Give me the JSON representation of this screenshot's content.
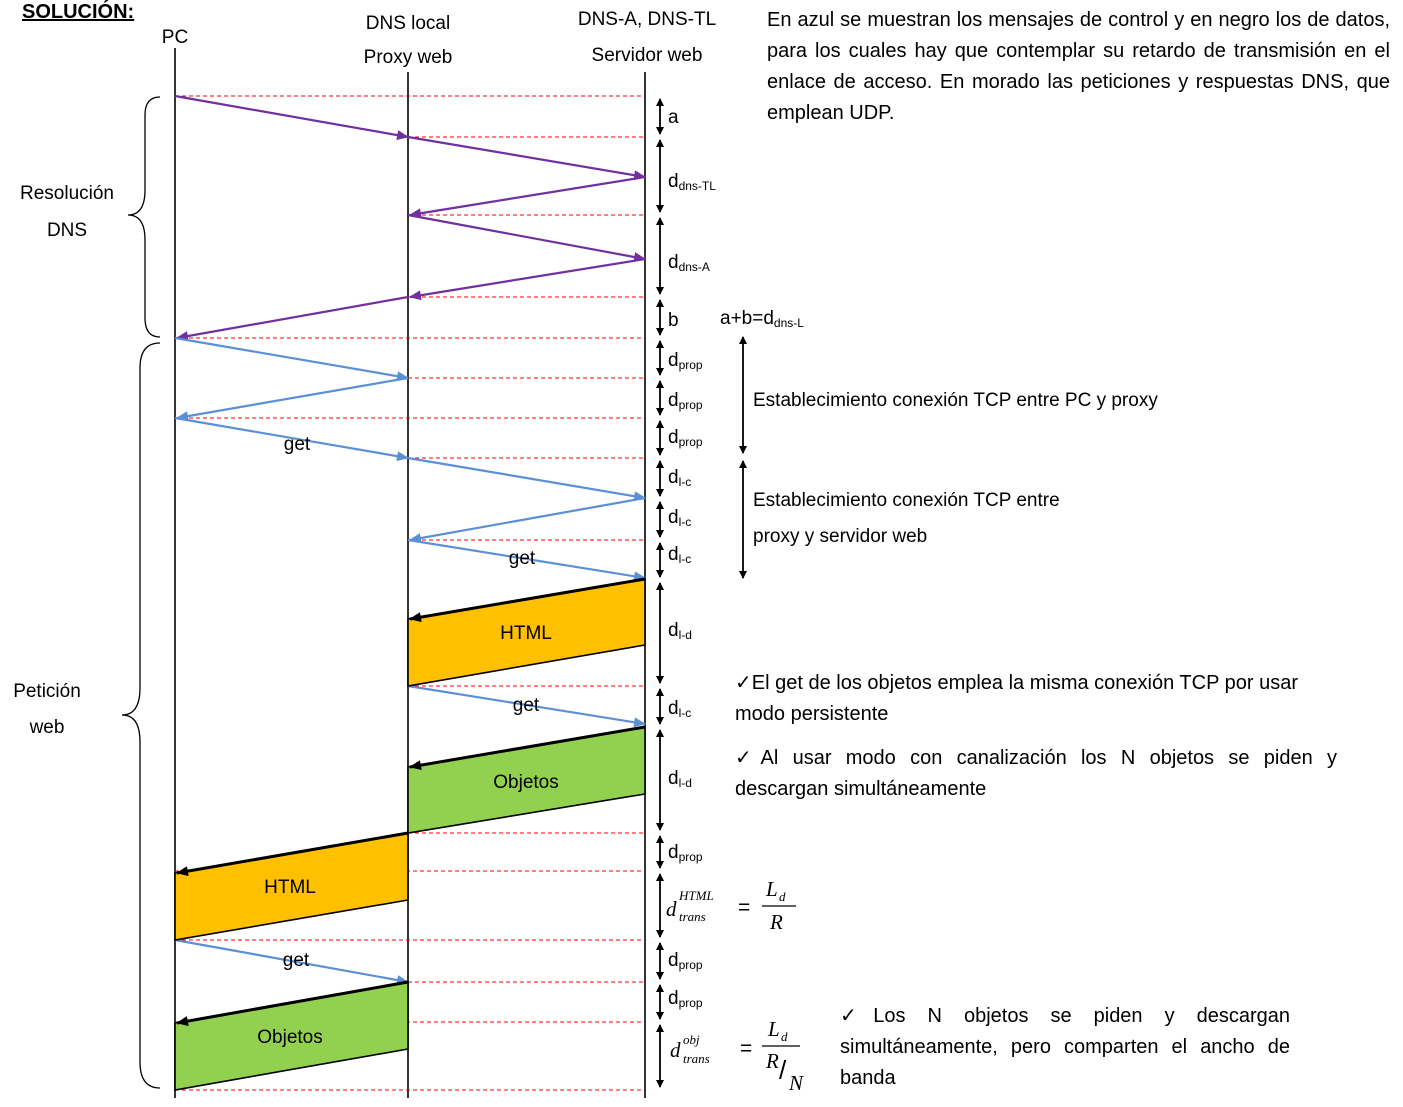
{
  "solution_title": "SOLUCIÓN:",
  "columns": {
    "pc": "PC",
    "proxy": [
      "DNS local",
      "Proxy web"
    ],
    "server": [
      "DNS-A, DNS-TL",
      "Servidor web"
    ]
  },
  "phases": {
    "dns": [
      "Resolución",
      "DNS"
    ],
    "web": [
      "Petición",
      "web"
    ]
  },
  "messages": {
    "get": "get",
    "html": "HTML",
    "objects": "Objetos"
  },
  "delays": {
    "a": "a",
    "b": "b",
    "d": "d",
    "dns_tl": "dns-TL",
    "dns_a": "dns-A",
    "prop": "prop",
    "lc": "l-c",
    "ld": "l-d",
    "sum_prefix": "a+b=d",
    "dns_l": "dns-L",
    "html_sup": "HTML",
    "obj_sup": "obj",
    "trans": "trans",
    "L": "L",
    "R": "R",
    "N": "N",
    "eq": "=",
    "slash": "/"
  },
  "notes": {
    "top": "En azul se muestran los mensajes de control y en negro los de datos, para los cuales hay que contemplar su retardo de transmisión en el enlace de acceso. En morado las peticiones y respuestas DNS, que emplean UDP.",
    "tcp_pc_proxy": "Establecimiento conexión TCP entre PC y proxy",
    "tcp_proxy_server": [
      "Establecimiento conexión TCP entre",
      "proxy y servidor web"
    ],
    "persistent": "El get de los objetos emplea la misma conexión TCP por usar modo persistente",
    "pipelining": "Al usar modo con canalización los N objetos se piden y descargan simultáneamente",
    "shared_bw": "Los N objetos se piden y descargan simultáneamente, pero comparten el ancho de banda"
  },
  "colors": {
    "dns": "#7030a0",
    "control": "#5b8fd6",
    "data": "#000000",
    "html_fill": "#ffc000",
    "obj_fill": "#92d050",
    "guide": "#ff0000"
  }
}
